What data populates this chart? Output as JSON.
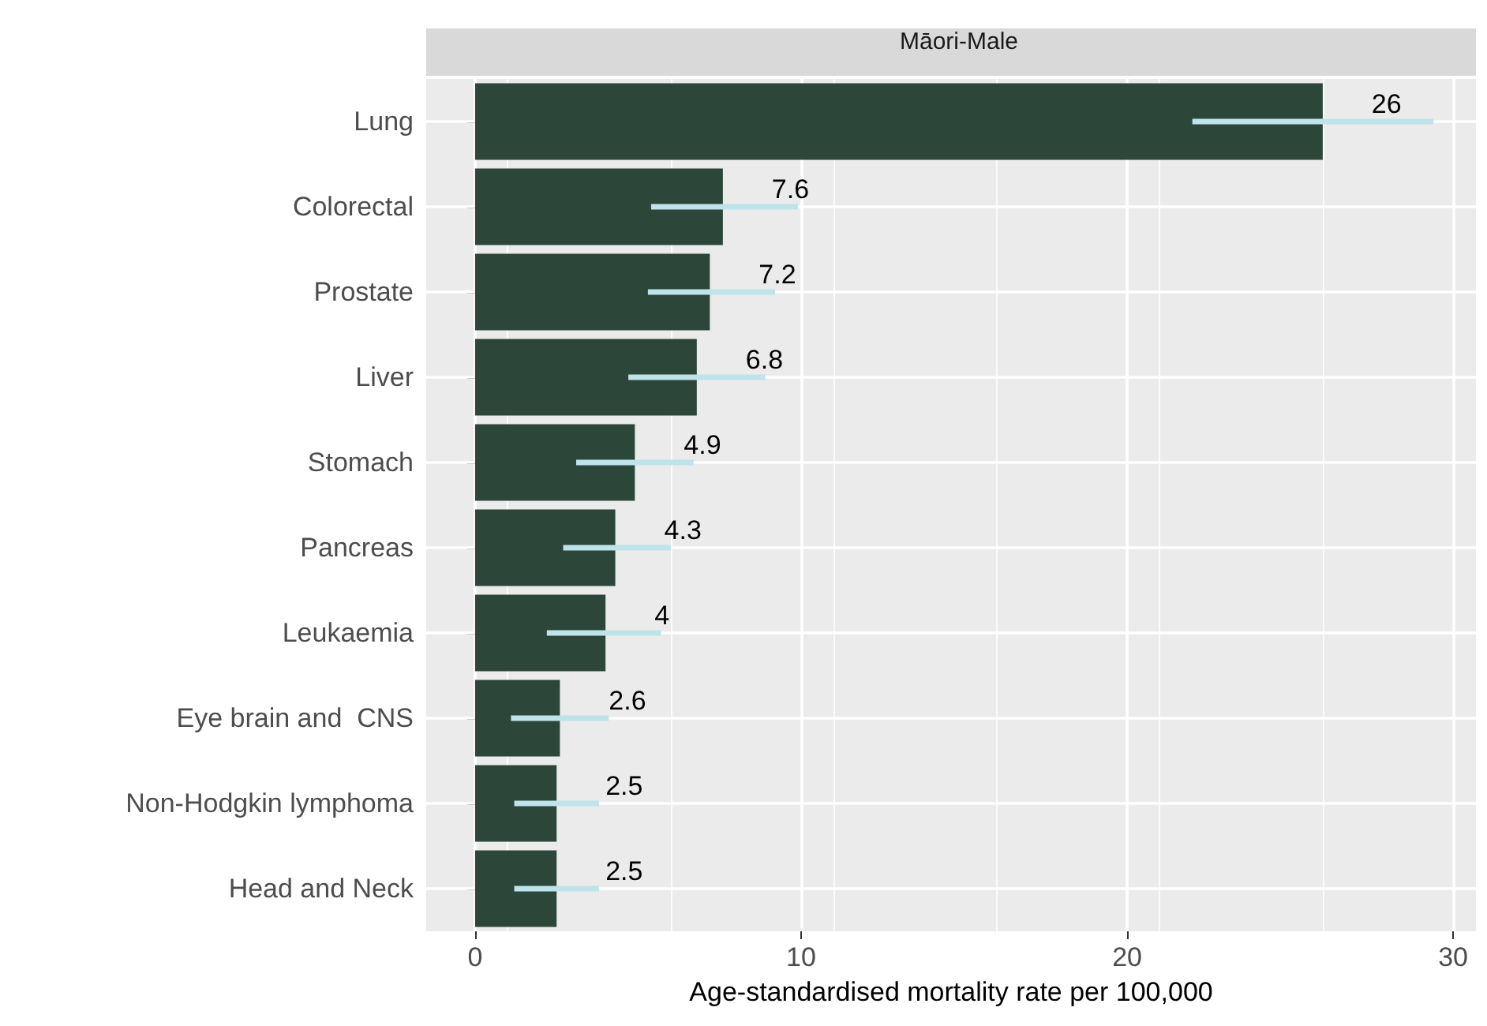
{
  "chart_data": {
    "type": "bar",
    "orientation": "horizontal",
    "title": "Māori-Male",
    "xlabel": "Age-standardised mortality rate per 100,000",
    "categories": [
      "Lung",
      "Colorectal",
      "Prostate",
      "Liver",
      "Stomach",
      "Pancreas",
      "Leukaemia",
      "Eye brain and  CNS",
      "Non-Hodgkin lymphoma",
      "Head and Neck"
    ],
    "values": [
      26,
      7.6,
      7.2,
      6.8,
      4.9,
      4.3,
      4,
      2.6,
      2.5,
      2.5
    ],
    "color": "#2c4639",
    "errors": [
      [
        22.0,
        29.4
      ],
      [
        5.4,
        9.9
      ],
      [
        5.3,
        9.2
      ],
      [
        4.7,
        8.9
      ],
      [
        3.1,
        6.7
      ],
      [
        2.7,
        6.0
      ],
      [
        2.2,
        5.7
      ],
      [
        1.1,
        4.1
      ],
      [
        1.2,
        3.8
      ],
      [
        1.2,
        3.8
      ]
    ],
    "data_labels": true,
    "xlim": [
      -1.5,
      30.7
    ],
    "xticks": [
      0,
      10,
      20,
      30
    ],
    "grid": true
  }
}
